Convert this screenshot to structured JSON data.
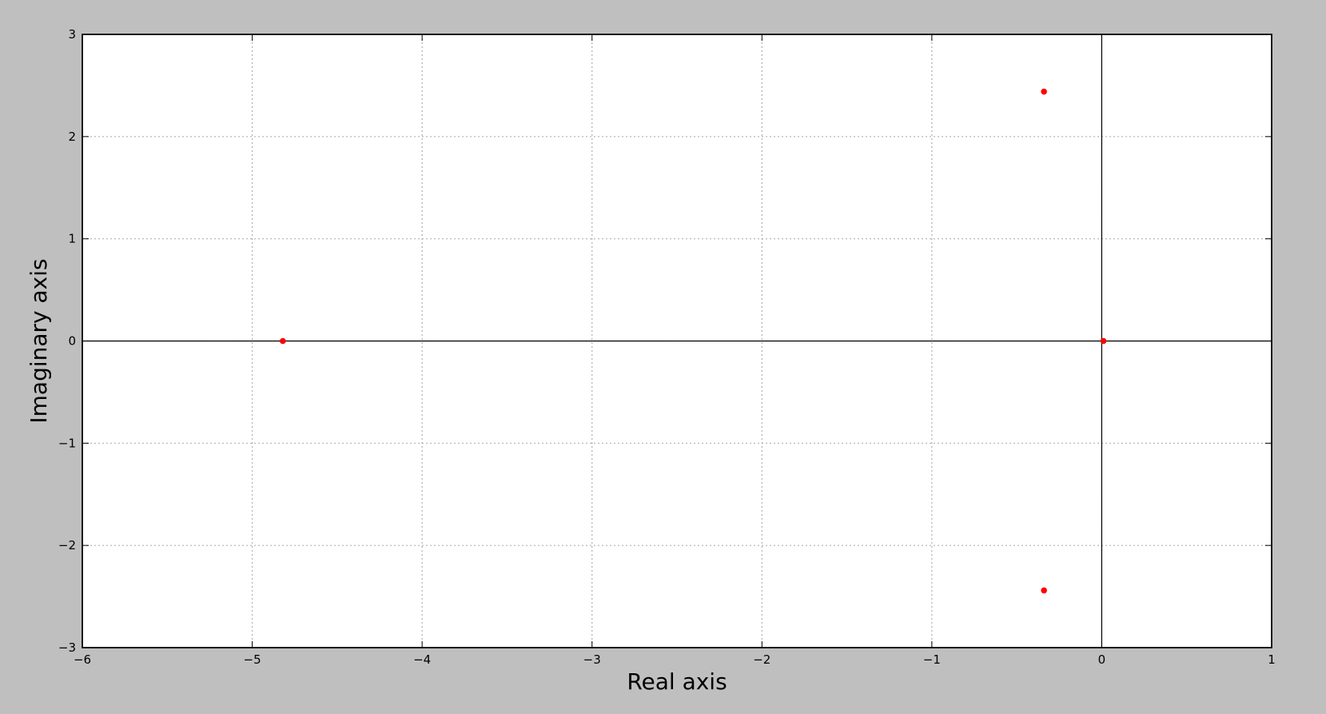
{
  "chart_data": {
    "type": "scatter",
    "title": "",
    "xlabel": "Real axis",
    "ylabel": "Imaginary axis",
    "xlim": [
      -6,
      1
    ],
    "ylim": [
      -3,
      3
    ],
    "xticks": [
      -6,
      -5,
      -4,
      -3,
      -2,
      -1,
      0,
      1
    ],
    "yticks": [
      -3,
      -2,
      -1,
      0,
      1,
      2,
      3
    ],
    "grid": true,
    "zero_lines": true,
    "marker_color": "#ff0000",
    "points": [
      {
        "x": -4.82,
        "y": 0
      },
      {
        "x": -0.34,
        "y": 2.44
      },
      {
        "x": -0.34,
        "y": -2.44
      },
      {
        "x": 0.01,
        "y": 0
      }
    ]
  },
  "colors": {
    "figure_background": "#bfbfbf",
    "plot_background": "#ffffff",
    "grid": "#b0b0b0"
  }
}
